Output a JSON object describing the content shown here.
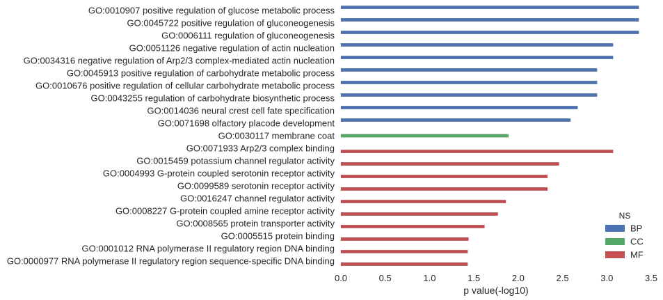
{
  "chart_data": {
    "type": "bar",
    "orientation": "horizontal",
    "xlabel": "p value(-log10)",
    "ylabel": "",
    "xlim": [
      0,
      3.5
    ],
    "xticks": [
      "0.0",
      "0.5",
      "1.0",
      "1.5",
      "2.0",
      "2.5",
      "3.0",
      "3.5"
    ],
    "grid": false,
    "legend": {
      "title": "NS",
      "placement": "bottom-right",
      "entries": [
        {
          "name": "BP",
          "color": "#4c72b0"
        },
        {
          "name": "CC",
          "color": "#55a868"
        },
        {
          "name": "MF",
          "color": "#c44e52"
        }
      ]
    },
    "categories": [
      "GO:0010907 positive regulation of glucose metabolic process",
      "GO:0045722 positive regulation of gluconeogenesis",
      "GO:0006111 regulation of gluconeogenesis",
      "GO:0051126 negative regulation of actin nucleation",
      "GO:0034316 negative regulation of Arp2/3 complex-mediated actin nucleation",
      "GO:0045913 positive regulation of carbohydrate metabolic process",
      "GO:0010676 positive regulation of cellular carbohydrate metabolic process",
      "GO:0043255 regulation of carbohydrate biosynthetic process",
      "GO:0014036 neural crest cell fate specification",
      "GO:0071698 olfactory placode development",
      "GO:0030117 membrane coat",
      "GO:0071933 Arp2/3 complex binding",
      "GO:0015459 potassium channel regulator activity",
      "GO:0004993 G-protein coupled serotonin receptor activity",
      "GO:0099589 serotonin receptor activity",
      "GO:0016247 channel regulator activity",
      "GO:0008227 G-protein coupled amine receptor activity",
      "GO:0008565 protein transporter activity",
      "GO:0005515 protein binding",
      "GO:0001012 RNA polymerase II regulatory region DNA binding",
      "GO:0000977 RNA polymerase II regulatory region sequence-specific DNA binding"
    ],
    "series": [
      {
        "name": "BP",
        "color": "#4c72b0",
        "values": [
          3.36,
          3.36,
          3.36,
          3.07,
          3.07,
          2.89,
          2.89,
          2.89,
          2.67,
          2.59,
          null,
          null,
          null,
          null,
          null,
          null,
          null,
          null,
          null,
          null,
          null
        ]
      },
      {
        "name": "CC",
        "color": "#55a868",
        "values": [
          null,
          null,
          null,
          null,
          null,
          null,
          null,
          null,
          null,
          null,
          1.89,
          null,
          null,
          null,
          null,
          null,
          null,
          null,
          null,
          null,
          null
        ]
      },
      {
        "name": "MF",
        "color": "#c44e52",
        "values": [
          null,
          null,
          null,
          null,
          null,
          null,
          null,
          null,
          null,
          null,
          null,
          3.07,
          2.46,
          2.33,
          2.33,
          1.86,
          1.77,
          1.62,
          1.44,
          1.43,
          1.43
        ]
      }
    ]
  }
}
